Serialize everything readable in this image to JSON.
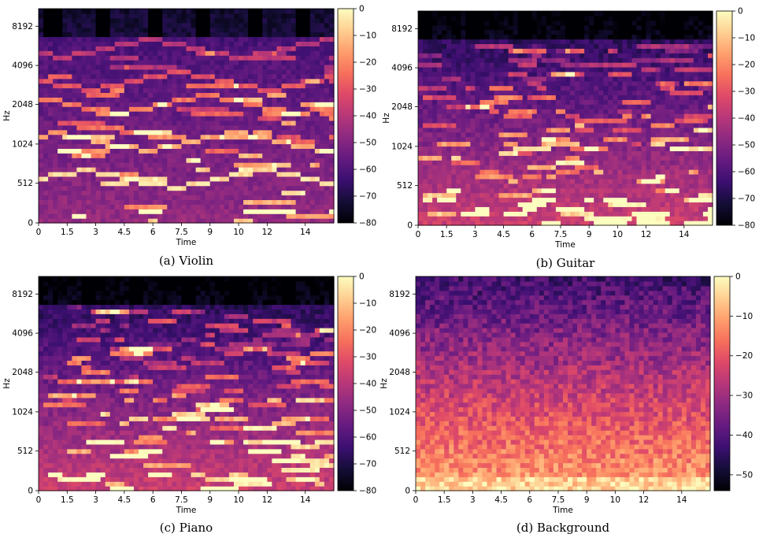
{
  "colors": {
    "magma": [
      "#000004",
      "#140e36",
      "#3b0f70",
      "#641a80",
      "#8c2981",
      "#b73779",
      "#de4968",
      "#f7705c",
      "#fe9f6d",
      "#fecf92",
      "#fcfdbf"
    ]
  },
  "chart_data": [
    {
      "type": "heatmap",
      "caption": "(a) Violin",
      "xlabel": "Time",
      "ylabel": "Hz",
      "x_ticks": [
        "0",
        "1.5",
        "3",
        "4.5",
        "6",
        "7.5",
        "9",
        "10",
        "12",
        "14"
      ],
      "y_ticks": [
        "0",
        "512",
        "1024",
        "2048",
        "4096",
        "8192"
      ],
      "colorbar_ticks": [
        "0",
        "−10",
        "−20",
        "−30",
        "−40",
        "−50",
        "−60",
        "−70",
        "−80"
      ],
      "colorbar_range": [
        -80,
        0
      ],
      "colormap": "magma",
      "x_range": [
        0,
        15.5
      ]
    },
    {
      "type": "heatmap",
      "caption": "(b) Guitar",
      "xlabel": "Time",
      "ylabel": "Hz",
      "x_ticks": [
        "0",
        "1.5",
        "3",
        "4.5",
        "6",
        "7.5",
        "9",
        "10",
        "12",
        "14"
      ],
      "y_ticks": [
        "0",
        "512",
        "1024",
        "2048",
        "4096",
        "8192"
      ],
      "colorbar_ticks": [
        "0",
        "−10",
        "−20",
        "−30",
        "−40",
        "−50",
        "−60",
        "−70",
        "−80"
      ],
      "colorbar_range": [
        -80,
        0
      ],
      "colormap": "magma",
      "x_range": [
        0,
        15.5
      ]
    },
    {
      "type": "heatmap",
      "caption": "(c) Piano",
      "xlabel": "Time",
      "ylabel": "Hz",
      "x_ticks": [
        "0",
        "1.5",
        "3",
        "4.5",
        "6",
        "7.5",
        "9",
        "10",
        "12",
        "14"
      ],
      "y_ticks": [
        "0",
        "512",
        "1024",
        "2048",
        "4096",
        "8192"
      ],
      "colorbar_ticks": [
        "0",
        "−10",
        "−20",
        "−30",
        "−40",
        "−50",
        "−60",
        "−70",
        "−80"
      ],
      "colorbar_range": [
        -80,
        0
      ],
      "colormap": "magma",
      "x_range": [
        0,
        15.5
      ]
    },
    {
      "type": "heatmap",
      "caption": "(d) Background",
      "xlabel": "Time",
      "ylabel": "Hz",
      "x_ticks": [
        "0",
        "1.5",
        "3",
        "4.5",
        "6",
        "7.5",
        "9",
        "10",
        "12",
        "14"
      ],
      "y_ticks": [
        "0",
        "512",
        "1024",
        "2048",
        "4096",
        "8192"
      ],
      "colorbar_ticks": [
        "0",
        "−10",
        "−20",
        "−30",
        "−40",
        "−50"
      ],
      "colorbar_range": [
        -54,
        0
      ],
      "colormap": "magma",
      "x_range": [
        0,
        15.5
      ]
    }
  ]
}
